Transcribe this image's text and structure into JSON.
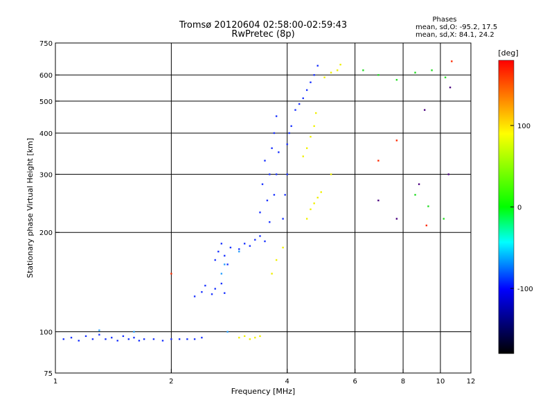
{
  "chart_data": {
    "type": "scatter",
    "title": "Tromsø 20120604 02:58:00-02:59:43",
    "subtitle": "RwPretec (8p)",
    "xlabel": "Frequency [MHz]",
    "ylabel": "Stationary phase Virtual Height [km]",
    "x_scale": "log",
    "y_scale": "log",
    "xlim": [
      1,
      12
    ],
    "ylim": [
      75,
      750
    ],
    "x_ticks": [
      1,
      2,
      4,
      6,
      8,
      10,
      12
    ],
    "x_tick_labels": [
      "1",
      "2",
      "4",
      "6",
      "8",
      "10",
      "12"
    ],
    "y_ticks": [
      75,
      100,
      200,
      300,
      400,
      500,
      600,
      750
    ],
    "y_tick_labels": [
      "75",
      "100",
      "200",
      "300",
      "400",
      "500",
      "600",
      "750"
    ],
    "x_gridlines": [
      2,
      4,
      6,
      8,
      10
    ],
    "y_gridlines": [
      100,
      200,
      300,
      400,
      500,
      600
    ],
    "grid": true,
    "phases_box": {
      "title": "Phases",
      "line1": "mean, sd,O: -95.2, 17.5",
      "line2": "mean, sd,X:  84.1, 24.2"
    },
    "colorbar": {
      "label": "[deg]",
      "range": [
        -180,
        180
      ],
      "ticks": [
        100,
        0,
        -100
      ],
      "tick_labels": [
        "100",
        "0",
        "-100"
      ],
      "colors": [
        "#ff0000",
        "#ffff00",
        "#00ff00",
        "#00ffff",
        "#0000ff",
        "#000000"
      ]
    },
    "series": [
      {
        "color_value": -100,
        "color": "#1a33ff",
        "points": [
          [
            1.05,
            95
          ],
          [
            1.1,
            96
          ],
          [
            1.15,
            94
          ],
          [
            1.2,
            97
          ],
          [
            1.25,
            95
          ],
          [
            1.3,
            98
          ],
          [
            1.35,
            95
          ],
          [
            1.4,
            96
          ],
          [
            1.45,
            94
          ],
          [
            1.5,
            97
          ],
          [
            1.55,
            95
          ],
          [
            1.6,
            96
          ],
          [
            1.65,
            94
          ],
          [
            1.7,
            95
          ],
          [
            1.8,
            95
          ],
          [
            1.9,
            94
          ],
          [
            2.0,
            95
          ],
          [
            2.1,
            95
          ],
          [
            2.2,
            95
          ],
          [
            2.3,
            95
          ],
          [
            2.4,
            96
          ],
          [
            2.3,
            128
          ],
          [
            2.4,
            132
          ],
          [
            2.45,
            138
          ],
          [
            2.55,
            130
          ],
          [
            2.6,
            135
          ],
          [
            2.7,
            140
          ],
          [
            2.75,
            131
          ],
          [
            2.6,
            165
          ],
          [
            2.65,
            175
          ],
          [
            2.7,
            185
          ],
          [
            2.75,
            170
          ],
          [
            2.8,
            160
          ],
          [
            2.85,
            180
          ],
          [
            3.0,
            178
          ],
          [
            3.1,
            185
          ],
          [
            3.2,
            182
          ],
          [
            3.3,
            190
          ],
          [
            3.4,
            195
          ],
          [
            3.5,
            188
          ],
          [
            3.4,
            230
          ],
          [
            3.45,
            280
          ],
          [
            3.5,
            330
          ],
          [
            3.55,
            250
          ],
          [
            3.6,
            300
          ],
          [
            3.65,
            360
          ],
          [
            3.7,
            400
          ],
          [
            3.75,
            450
          ],
          [
            3.8,
            350
          ],
          [
            3.7,
            260
          ],
          [
            3.6,
            215
          ],
          [
            3.75,
            300
          ],
          [
            3.9,
            220
          ],
          [
            3.95,
            260
          ],
          [
            4.0,
            300
          ],
          [
            4.0,
            370
          ],
          [
            4.05,
            400
          ],
          [
            4.1,
            420
          ],
          [
            4.2,
            470
          ],
          [
            4.3,
            490
          ],
          [
            4.4,
            510
          ],
          [
            4.5,
            540
          ],
          [
            4.6,
            570
          ],
          [
            4.7,
            600
          ],
          [
            4.8,
            640
          ]
        ]
      },
      {
        "color_value": -80,
        "color": "#2aa0ff",
        "points": [
          [
            1.3,
            101
          ],
          [
            1.6,
            100
          ],
          [
            2.8,
            100
          ],
          [
            2.7,
            150
          ],
          [
            2.75,
            160
          ],
          [
            3.0,
            175
          ]
        ]
      },
      {
        "color_value": 100,
        "color": "#f0f000",
        "points": [
          [
            3.0,
            96
          ],
          [
            3.1,
            97
          ],
          [
            3.2,
            95
          ],
          [
            3.3,
            96
          ],
          [
            3.4,
            97
          ],
          [
            3.65,
            150
          ],
          [
            3.75,
            165
          ],
          [
            3.9,
            180
          ],
          [
            4.4,
            340
          ],
          [
            4.5,
            360
          ],
          [
            4.6,
            390
          ],
          [
            4.7,
            420
          ],
          [
            4.75,
            460
          ],
          [
            4.5,
            220
          ],
          [
            4.6,
            235
          ],
          [
            4.7,
            245
          ],
          [
            4.8,
            255
          ],
          [
            4.9,
            265
          ],
          [
            5.0,
            590
          ],
          [
            5.2,
            610
          ],
          [
            5.4,
            620
          ],
          [
            5.5,
            645
          ],
          [
            5.2,
            300
          ]
        ]
      },
      {
        "color_value": 0,
        "color": "#22dd22",
        "points": [
          [
            6.3,
            620
          ],
          [
            6.9,
            600
          ],
          [
            7.7,
            580
          ],
          [
            8.6,
            610
          ],
          [
            9.5,
            620
          ],
          [
            10.3,
            590
          ],
          [
            8.6,
            260
          ],
          [
            9.3,
            240
          ],
          [
            10.2,
            220
          ]
        ]
      },
      {
        "color_value": -140,
        "color": "#4b0080",
        "points": [
          [
            6.9,
            250
          ],
          [
            7.7,
            220
          ],
          [
            8.8,
            280
          ],
          [
            10.5,
            300
          ],
          [
            10.6,
            550
          ],
          [
            9.1,
            470
          ]
        ]
      },
      {
        "color_value": 160,
        "color": "#ff2a00",
        "points": [
          [
            2.0,
            150
          ],
          [
            6.9,
            330
          ],
          [
            7.7,
            380
          ],
          [
            9.2,
            210
          ],
          [
            10.7,
            660
          ]
        ]
      }
    ]
  }
}
